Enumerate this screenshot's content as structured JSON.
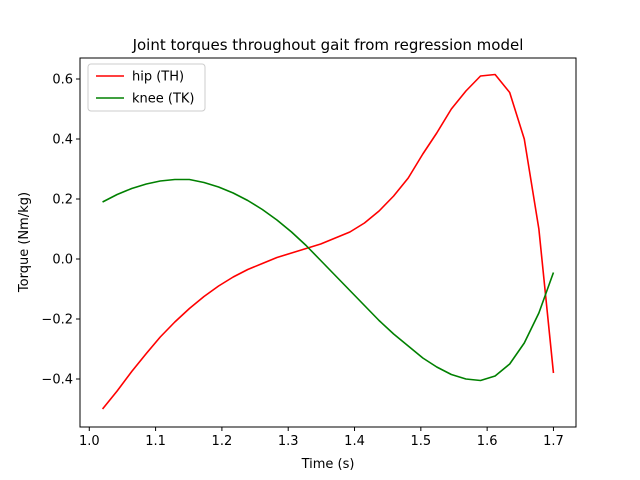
{
  "chart_data": {
    "type": "line",
    "title": "Joint torques throughout gait from regression model",
    "xlabel": "Time (s)",
    "ylabel": "Torque (Nm/kg)",
    "xlim": [
      0.986,
      1.734
    ],
    "ylim": [
      -0.56,
      0.67
    ],
    "xticks": [
      1.0,
      1.1,
      1.2,
      1.3,
      1.4,
      1.5,
      1.6,
      1.7
    ],
    "xtick_labels": [
      "1.0",
      "1.1",
      "1.2",
      "1.3",
      "1.4",
      "1.5",
      "1.6",
      "1.7"
    ],
    "yticks": [
      -0.4,
      -0.2,
      0.0,
      0.2,
      0.4,
      0.6
    ],
    "ytick_labels": [
      "−0.4",
      "−0.2",
      "0.0",
      "0.2",
      "0.4",
      "0.6"
    ],
    "grid": false,
    "legend_position": "upper-left",
    "series": [
      {
        "name": "hip (TH)",
        "color": "#ff0000",
        "x": [
          1.02,
          1.042,
          1.064,
          1.086,
          1.107,
          1.129,
          1.151,
          1.173,
          1.195,
          1.217,
          1.239,
          1.261,
          1.283,
          1.305,
          1.327,
          1.349,
          1.371,
          1.393,
          1.415,
          1.437,
          1.459,
          1.481,
          1.503,
          1.524,
          1.546,
          1.568,
          1.59,
          1.612,
          1.634,
          1.656,
          1.678,
          1.7
        ],
        "y": [
          -0.5,
          -0.44,
          -0.375,
          -0.315,
          -0.26,
          -0.21,
          -0.165,
          -0.125,
          -0.09,
          -0.06,
          -0.035,
          -0.015,
          0.005,
          0.02,
          0.035,
          0.05,
          0.07,
          0.09,
          0.12,
          0.16,
          0.21,
          0.27,
          0.35,
          0.42,
          0.5,
          0.56,
          0.61,
          0.615,
          0.555,
          0.4,
          0.1,
          -0.38
        ]
      },
      {
        "name": "knee (TK)",
        "color": "#008000",
        "x": [
          1.02,
          1.042,
          1.064,
          1.086,
          1.107,
          1.129,
          1.151,
          1.173,
          1.195,
          1.217,
          1.239,
          1.261,
          1.283,
          1.305,
          1.327,
          1.349,
          1.371,
          1.393,
          1.415,
          1.437,
          1.459,
          1.481,
          1.503,
          1.524,
          1.546,
          1.568,
          1.59,
          1.612,
          1.634,
          1.656,
          1.678,
          1.7
        ],
        "y": [
          0.19,
          0.215,
          0.235,
          0.25,
          0.26,
          0.265,
          0.265,
          0.255,
          0.24,
          0.22,
          0.195,
          0.165,
          0.13,
          0.09,
          0.045,
          -0.005,
          -0.055,
          -0.105,
          -0.155,
          -0.205,
          -0.25,
          -0.29,
          -0.33,
          -0.36,
          -0.385,
          -0.4,
          -0.405,
          -0.39,
          -0.35,
          -0.28,
          -0.18,
          -0.045
        ]
      }
    ]
  }
}
